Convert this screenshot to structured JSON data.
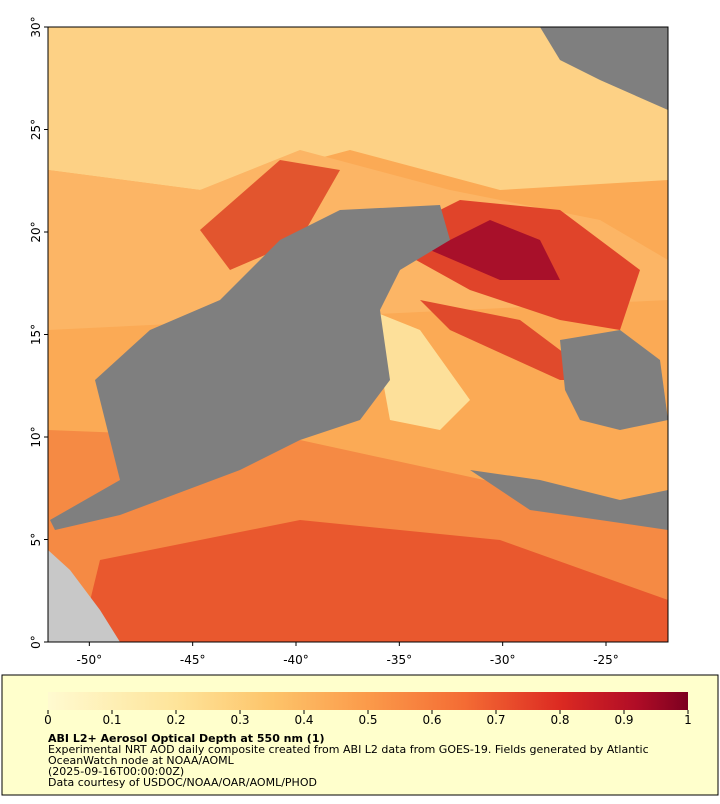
{
  "map": {
    "xlim": [
      -52,
      -22
    ],
    "ylim": [
      0,
      30
    ],
    "xticks": [
      {
        "value": -50,
        "label": "-50°"
      },
      {
        "value": -45,
        "label": "-45°"
      },
      {
        "value": -40,
        "label": "-40°"
      },
      {
        "value": -35,
        "label": "-35°"
      },
      {
        "value": -30,
        "label": "-30°"
      },
      {
        "value": -25,
        "label": "-25°"
      }
    ],
    "yticks": [
      {
        "value": 0,
        "label": "0°"
      },
      {
        "value": 5,
        "label": "5°"
      },
      {
        "value": 10,
        "label": "10°"
      },
      {
        "value": 15,
        "label": "15°"
      },
      {
        "value": 20,
        "label": "20°"
      },
      {
        "value": 25,
        "label": "25°"
      },
      {
        "value": 30,
        "label": "30°"
      }
    ]
  },
  "colorbar": {
    "lim": [
      0,
      1
    ],
    "ticks": [
      0,
      0.1,
      0.2,
      0.3,
      0.4,
      0.5,
      0.6,
      0.7,
      0.8,
      0.9,
      1
    ]
  },
  "footer": {
    "title": "ABI L2+ Aerosol Optical Depth at 550 nm (1)",
    "lines": [
      "Experimental NRT AOD daily composite created from ABI L2 data from GOES-19. Fields generated by Atlantic",
      "OceanWatch node at NOAA/AOML",
      "(2025-09-16T00:00:00Z)",
      "Data courtesy of USDOC/NOAA/OAR/AOML/PHOD"
    ]
  }
}
